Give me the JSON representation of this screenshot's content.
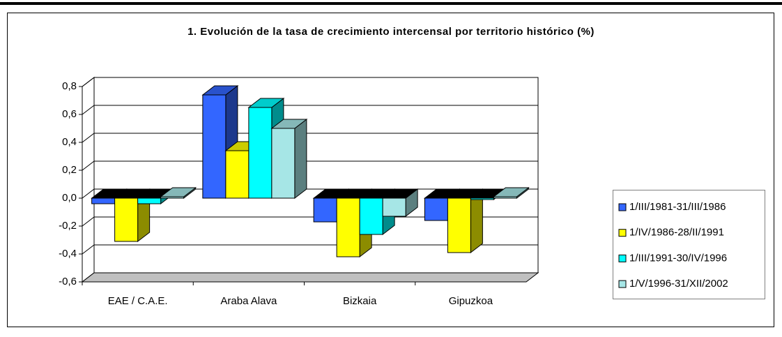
{
  "chart_data": {
    "type": "bar3d",
    "title": "1. Evolución de la tasa de crecimiento intercensal por territorio histórico (%)",
    "categories": [
      "EAE / C.A.E.",
      "Araba Alava",
      "Bizkaia",
      "Gipuzkoa"
    ],
    "series": [
      {
        "name": "1/III/1981-31/III/1986",
        "color": "#3366ff",
        "values": [
          -0.04,
          0.74,
          -0.17,
          -0.16
        ]
      },
      {
        "name": "1/IV/1986-28/II/1991",
        "color": "#ffff00",
        "values": [
          -0.31,
          0.34,
          -0.42,
          -0.39
        ]
      },
      {
        "name": "1/III/1991-30/IV/1996",
        "color": "#00ffff",
        "values": [
          -0.04,
          0.65,
          -0.26,
          -0.01
        ]
      },
      {
        "name": "1/V/1996-31/XII/2002",
        "color": "#a6e6e6",
        "values": [
          0.01,
          0.5,
          -0.13,
          0.01
        ]
      }
    ],
    "ylim": [
      -0.6,
      0.8
    ],
    "yticks": [
      {
        "value": -0.6,
        "label": "-0,6"
      },
      {
        "value": -0.4,
        "label": "-0,4"
      },
      {
        "value": -0.2,
        "label": "-0,2"
      },
      {
        "value": 0,
        "label": "0,0"
      },
      {
        "value": 0.2,
        "label": "0,2"
      },
      {
        "value": 0.4,
        "label": "0,4"
      },
      {
        "value": 0.6,
        "label": "0,6"
      },
      {
        "value": 0.8,
        "label": "0,8"
      }
    ],
    "grid": true,
    "legend": "right"
  }
}
